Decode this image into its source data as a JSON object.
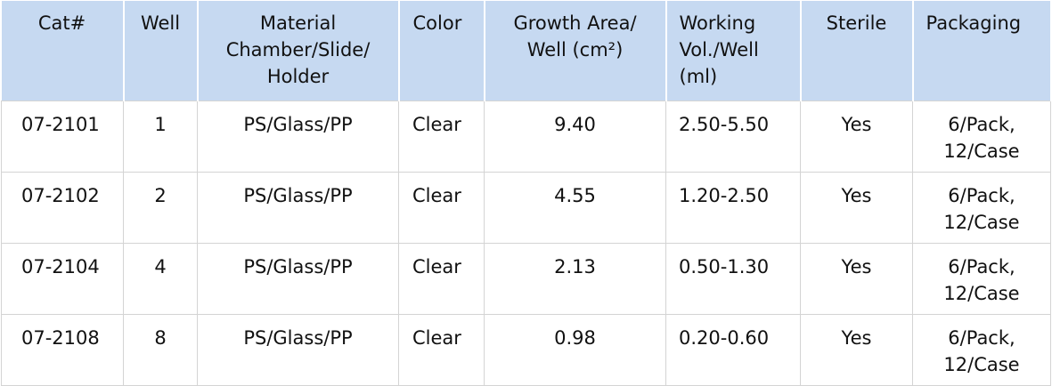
{
  "table": {
    "header": [
      "Cat#",
      "Well",
      "Material\nChamber/Slide/\nHolder",
      "Color",
      "Growth Area/\nWell (cm²)",
      "Working\nVol./Well\n(ml)",
      "Sterile",
      "Packaging"
    ],
    "rows": [
      [
        "07-2101",
        "1",
        "PS/Glass/PP",
        "Clear",
        "9.40",
        "2.50-5.50",
        "Yes",
        "6/Pack,\n12/Case"
      ],
      [
        "07-2102",
        "2",
        "PS/Glass/PP",
        "Clear",
        "4.55",
        "1.20-2.50",
        "Yes",
        "6/Pack,\n12/Case"
      ],
      [
        "07-2104",
        "4",
        "PS/Glass/PP",
        "Clear",
        "2.13",
        "0.50-1.30",
        "Yes",
        "6/Pack,\n12/Case"
      ],
      [
        "07-2108",
        "8",
        "PS/Glass/PP",
        "Clear",
        "0.98",
        "0.20-0.60",
        "Yes",
        "6/Pack,\n12/Case"
      ]
    ]
  }
}
